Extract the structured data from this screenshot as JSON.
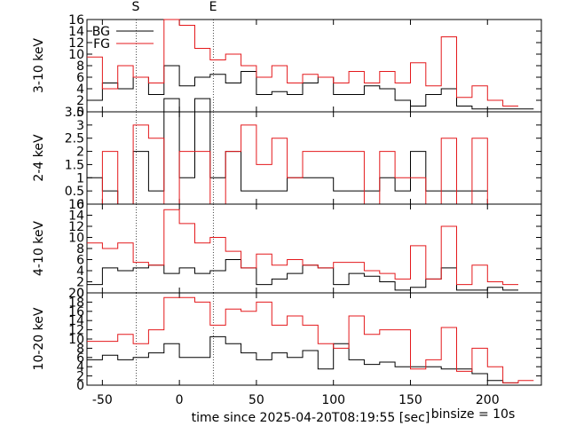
{
  "figure": {
    "xlabel": "time since 2025-04-20T08:19:55 [sec]",
    "binsize_label": "binsize = 10s",
    "markers": [
      {
        "label": "S",
        "x": -28
      },
      {
        "label": "E",
        "x": 22
      }
    ],
    "x_ticks": [
      -50,
      0,
      50,
      100,
      150,
      200
    ],
    "xlim": [
      -60,
      235
    ],
    "colors": {
      "bg": "#000000",
      "fg": "#e4191c",
      "frame": "#000000"
    }
  },
  "chart_data": [
    {
      "type": "line",
      "ylabel": "3-10 keV",
      "ylim": [
        0,
        16
      ],
      "y_ticks": [
        0,
        2,
        4,
        6,
        8,
        10,
        12,
        14,
        16
      ],
      "legend": [
        {
          "label": "BG",
          "series": "BG"
        },
        {
          "label": "FG",
          "series": "FG"
        }
      ],
      "x_edges": [
        -60,
        -50,
        -40,
        -30,
        -20,
        -10,
        0,
        10,
        20,
        30,
        40,
        50,
        60,
        70,
        80,
        90,
        100,
        110,
        120,
        130,
        140,
        150,
        160,
        170,
        180,
        190,
        200,
        210,
        220,
        230
      ],
      "series": [
        {
          "name": "BG",
          "values": [
            2,
            5,
            4,
            6,
            3,
            8,
            4.5,
            6,
            6.5,
            5,
            7,
            3,
            3.5,
            3,
            5,
            6,
            3,
            3,
            4.5,
            4,
            2,
            1,
            3,
            4,
            1,
            0.5,
            0.5,
            0.5,
            0.5
          ]
        },
        {
          "name": "FG",
          "values": [
            9.5,
            4,
            8,
            6,
            5,
            16,
            15,
            11,
            9,
            10,
            8,
            6,
            8,
            5,
            6.5,
            6,
            5,
            7,
            5,
            7,
            5,
            8.5,
            4.5,
            13,
            2.5,
            4.5,
            2,
            1,
            null
          ]
        }
      ]
    },
    {
      "type": "line",
      "ylabel": "2-4 keV",
      "ylim": [
        0,
        3.5
      ],
      "y_ticks": [
        0,
        0.5,
        1,
        1.5,
        2,
        2.5,
        3,
        3.5
      ],
      "y_tick_labels": [
        "0",
        "0.5",
        "1",
        "1.5",
        "2",
        "2.5",
        "3",
        "3.5"
      ],
      "x_edges": [
        -60,
        -50,
        -40,
        -30,
        -20,
        -10,
        0,
        10,
        20,
        30,
        40,
        50,
        60,
        70,
        80,
        90,
        100,
        110,
        120,
        130,
        140,
        150,
        160,
        170,
        180,
        190,
        200,
        210,
        220,
        230
      ],
      "series": [
        {
          "name": "BG",
          "values": [
            1,
            0.5,
            0,
            2,
            0.5,
            4,
            1,
            4,
            1,
            2,
            0.5,
            0.5,
            0.5,
            1,
            1,
            1,
            0.5,
            0.5,
            0.5,
            1,
            0.5,
            2,
            0.5,
            0.5,
            0.5,
            0.5,
            null,
            null,
            null
          ]
        },
        {
          "name": "FG",
          "values": [
            0,
            2,
            0,
            3,
            2.5,
            0,
            2,
            2,
            0,
            2,
            3,
            1.5,
            2.5,
            1,
            2,
            2,
            2,
            2,
            0,
            2,
            1,
            1,
            0,
            2.5,
            0,
            2.5,
            0,
            null,
            null
          ]
        }
      ]
    },
    {
      "type": "line",
      "ylabel": "4-10 keV",
      "ylim": [
        0,
        16
      ],
      "y_ticks": [
        0,
        2,
        4,
        6,
        8,
        10,
        12,
        14,
        16
      ],
      "x_edges": [
        -60,
        -50,
        -40,
        -30,
        -20,
        -10,
        0,
        10,
        20,
        30,
        40,
        50,
        60,
        70,
        80,
        90,
        100,
        110,
        120,
        130,
        140,
        150,
        160,
        170,
        180,
        190,
        200,
        210,
        220,
        230
      ],
      "series": [
        {
          "name": "BG",
          "values": [
            1.5,
            4.5,
            4,
            4.5,
            5,
            3.5,
            4.5,
            3.5,
            4,
            6,
            4.5,
            1.5,
            2.5,
            3.5,
            5,
            4.5,
            1.5,
            3.5,
            3,
            2,
            0.5,
            1,
            2.5,
            4.5,
            0.5,
            0.5,
            1,
            0.5,
            null
          ]
        },
        {
          "name": "FG",
          "values": [
            9,
            8,
            9,
            5.5,
            5,
            15,
            12.5,
            9,
            10,
            7.5,
            4.5,
            7,
            5,
            6,
            5,
            4.5,
            5.5,
            5.5,
            4,
            3.5,
            2.5,
            8.5,
            2.5,
            12,
            1.5,
            5,
            2,
            1.5,
            null
          ]
        }
      ]
    },
    {
      "type": "line",
      "ylabel": "10-20 keV",
      "ylim": [
        0,
        20
      ],
      "y_ticks": [
        0,
        2,
        4,
        6,
        8,
        10,
        12,
        14,
        16,
        18,
        20
      ],
      "x_edges": [
        -60,
        -50,
        -40,
        -30,
        -20,
        -10,
        0,
        10,
        20,
        30,
        40,
        50,
        60,
        70,
        80,
        90,
        100,
        110,
        120,
        130,
        140,
        150,
        160,
        170,
        180,
        190,
        200,
        210,
        220,
        230
      ],
      "series": [
        {
          "name": "BG",
          "values": [
            5.5,
            6.5,
            5.5,
            6,
            7,
            9,
            6,
            6,
            10.5,
            9,
            7,
            5.5,
            7,
            6,
            7.5,
            3.5,
            9,
            5.5,
            4.5,
            5,
            4,
            4,
            4,
            3.5,
            3.5,
            2.5,
            1,
            0.5,
            null
          ]
        },
        {
          "name": "FG",
          "values": [
            9.5,
            9.5,
            11,
            9,
            12,
            19,
            19,
            18,
            13,
            16.5,
            16,
            18,
            13,
            15,
            13,
            9,
            8,
            15,
            11,
            12,
            12,
            3.5,
            5.5,
            12.5,
            3,
            8,
            4,
            0.5,
            1
          ]
        }
      ]
    }
  ]
}
